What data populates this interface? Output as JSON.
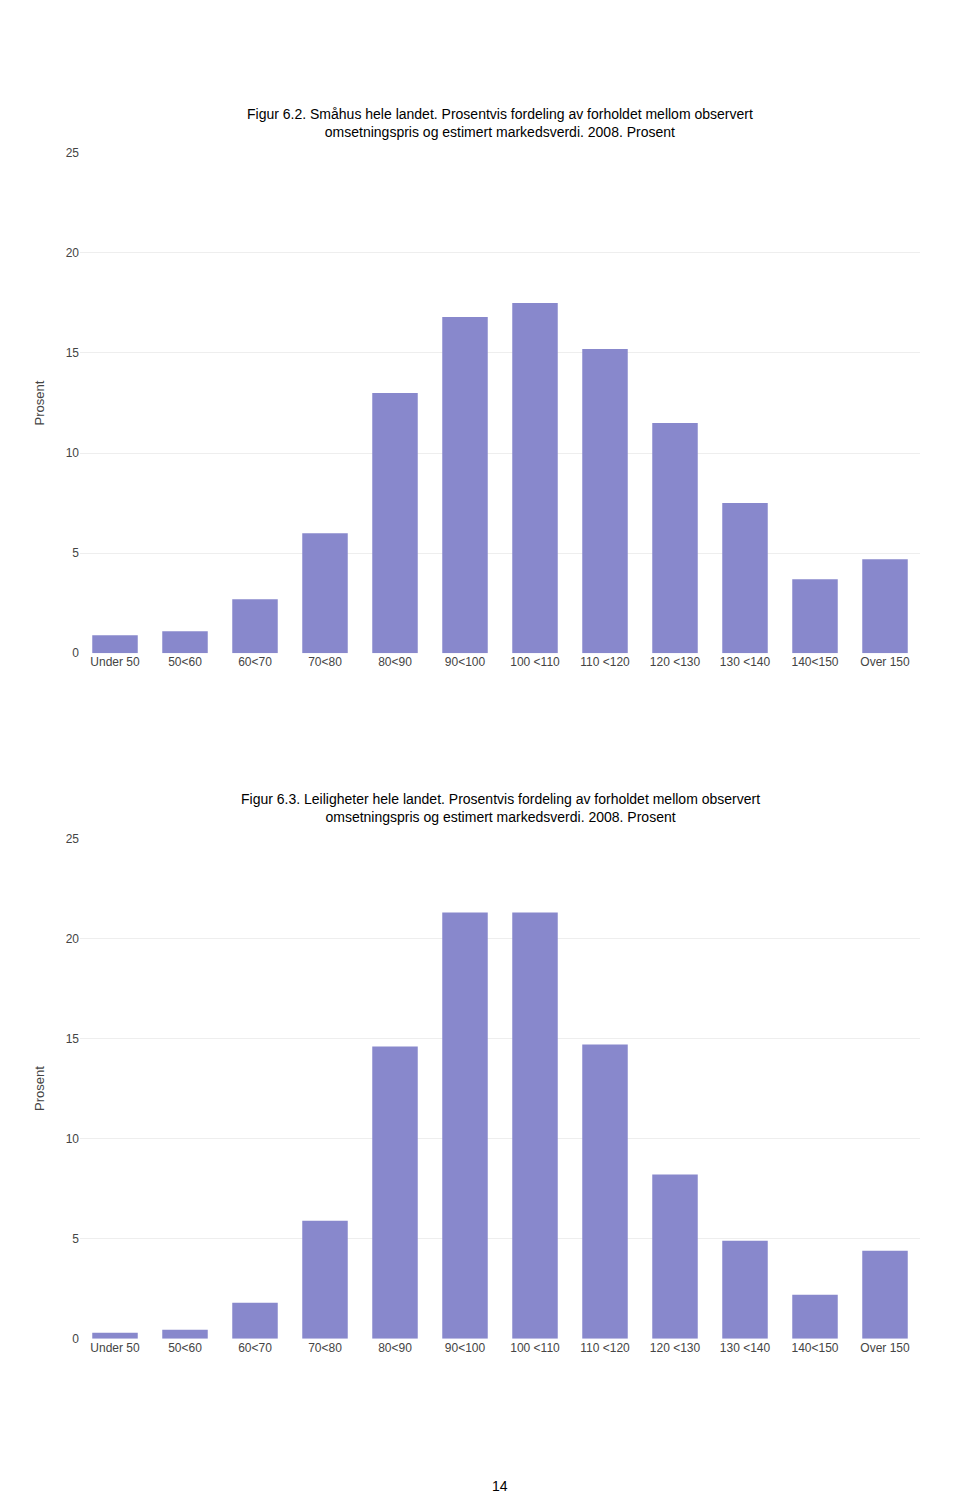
{
  "chart_data": [
    {
      "type": "bar",
      "title": "Figur 6.2. Småhus hele landet. Prosentvis fordeling av forholdet mellom observert\nomsetningspris og estimert markedsverdi. 2008. Prosent",
      "y_label": "Prosent",
      "categories": [
        "Under 50",
        "50<60",
        "60<70",
        "70<80",
        "80<90",
        "90<100",
        "100 <110",
        "110 <120",
        "120 <130",
        "130 <140",
        "140<150",
        "Over 150"
      ],
      "values": [
        0.9,
        1.1,
        2.7,
        6.0,
        13.0,
        16.8,
        17.5,
        15.2,
        11.5,
        7.5,
        3.7,
        4.7
      ],
      "color": "#8888cc",
      "ylim": [
        0,
        25
      ],
      "yticks": [
        0,
        5,
        10,
        15,
        20,
        25
      ],
      "grid": true
    },
    {
      "type": "bar",
      "title": "Figur 6.3. Leiligheter hele landet. Prosentvis fordeling av forholdet mellom observert\nomsetningspris og estimert markedsverdi. 2008. Prosent",
      "y_label": "Prosent",
      "categories": [
        "Under 50",
        "50<60",
        "60<70",
        "70<80",
        "80<90",
        "90<100",
        "100 <110",
        "110 <120",
        "120 <130",
        "130 <140",
        "140<150",
        "Over 150"
      ],
      "values": [
        0.3,
        0.45,
        1.8,
        5.9,
        14.6,
        21.3,
        21.3,
        14.7,
        8.2,
        4.9,
        2.2,
        4.4
      ],
      "color": "#8888cc",
      "ylim": [
        0,
        25
      ],
      "yticks": [
        0,
        5,
        10,
        15,
        20,
        25
      ],
      "grid": true,
      "annotations": [
        "14"
      ]
    }
  ]
}
